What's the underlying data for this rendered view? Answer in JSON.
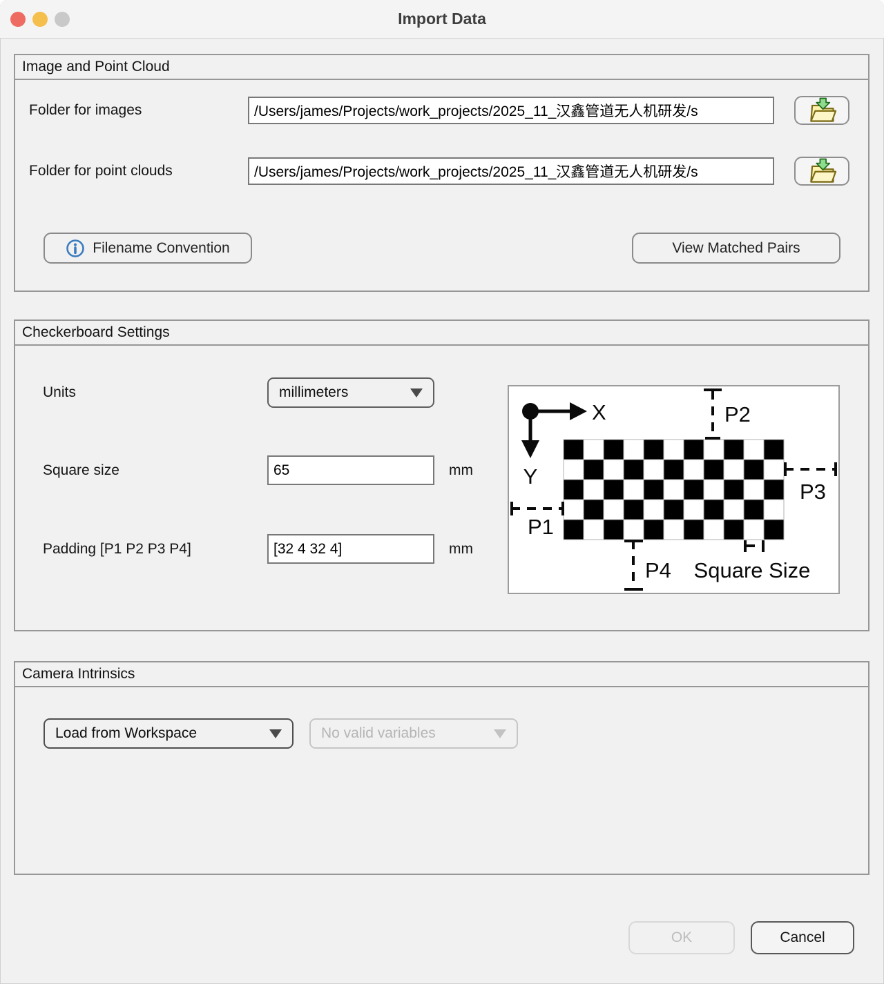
{
  "window": {
    "title": "Import Data"
  },
  "sections": {
    "image_point_cloud": {
      "title": "Image and Point Cloud",
      "fields": [
        {
          "label": "Folder for images",
          "value": "/Users/james/Projects/work_projects/2025_11_汉鑫管道无人机研发/s"
        },
        {
          "label": "Folder for point clouds",
          "value": "/Users/james/Projects/work_projects/2025_11_汉鑫管道无人机研发/s"
        }
      ],
      "filename_convention": "Filename Convention",
      "view_matched_pairs": "View Matched Pairs"
    },
    "checkerboard": {
      "title": "Checkerboard Settings",
      "units": {
        "label": "Units",
        "value": "millimeters"
      },
      "square_size": {
        "label": "Square size",
        "value": "65",
        "unit": "mm"
      },
      "padding": {
        "label": "Padding [P1 P2 P3 P4]",
        "value": "[32 4 32 4]",
        "unit": "mm"
      },
      "diagram": {
        "rows": 5,
        "cols": 11,
        "x_axis": "X",
        "y_axis": "Y",
        "p1": "P1",
        "p2": "P2",
        "p3": "P3",
        "p4": "P4",
        "square_size_label": "Square Size"
      }
    },
    "camera_intrinsics": {
      "title": "Camera Intrinsics",
      "source": {
        "value": "Load from Workspace"
      },
      "variables": {
        "value": "No valid variables"
      }
    }
  },
  "footer": {
    "ok": "OK",
    "cancel": "Cancel"
  },
  "colors": {
    "traffic_red": "#ed6b60",
    "traffic_yellow": "#f5bf4e",
    "traffic_gray": "#c9c9c9",
    "info_icon_blue": "#3a7dbe",
    "folder_icon_yellow": "#fdf3ae",
    "folder_icon_outline": "#7c6b14",
    "folder_arrow_green": "#8fdc8f",
    "folder_arrow_outline": "#1e6b1e"
  }
}
